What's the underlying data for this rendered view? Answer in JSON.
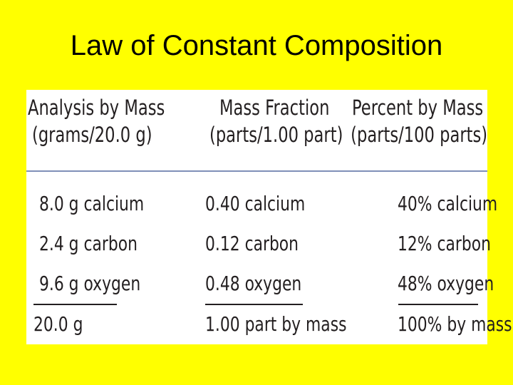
{
  "slide": {
    "title": "Law of Constant Composition"
  },
  "table": {
    "columns": [
      {
        "line1": "Analysis by Mass",
        "line2": "(grams/20.0 g)"
      },
      {
        "line1": "Mass Fraction",
        "line2": "(parts/1.00 part)"
      },
      {
        "line1": "Percent by Mass",
        "line2": "(parts/100 parts)"
      }
    ],
    "rows": [
      [
        "8.0 g calcium",
        "0.40 calcium",
        "40% calcium"
      ],
      [
        "2.4 g carbon",
        "0.12 carbon",
        "12% carbon"
      ],
      [
        "9.6 g oxygen",
        "0.48 oxygen",
        "48% oxygen"
      ]
    ],
    "totals": [
      "20.0 g",
      "1.00 part by mass",
      "100% by mass"
    ]
  }
}
